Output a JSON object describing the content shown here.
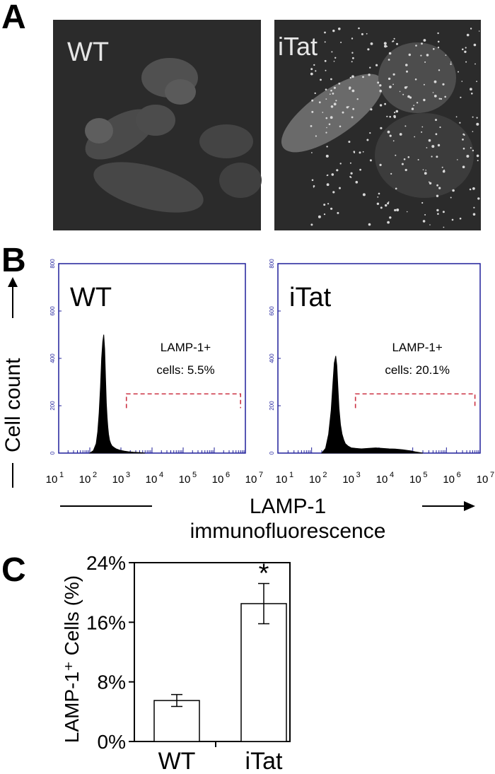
{
  "panels": {
    "a": {
      "letter": "A",
      "left_label": "WT",
      "right_label": "iTat"
    },
    "b": {
      "letter": "B",
      "y_axis_title": "Cell count",
      "x_axis_title_line1": "LAMP-1",
      "x_axis_title_line2": "immunofluorescence"
    },
    "c": {
      "letter": "C"
    }
  },
  "colors": {
    "frame": "#1f1f9a",
    "gate": "#cc3344",
    "histogram": "#000000",
    "micrograph_bg": "#2b2b2b"
  },
  "chart_data": [
    {
      "type": "area",
      "title": "WT",
      "xlabel": "LAMP-1 immunofluorescence",
      "ylabel": "Cell count",
      "x_scale": "log",
      "xlim": [
        10,
        10000000
      ],
      "ylim": [
        0,
        800
      ],
      "x_ticks": [
        "10",
        "10",
        "10",
        "10",
        "10",
        "10",
        "10"
      ],
      "x_tick_exponents": [
        "1",
        "2",
        "3",
        "4",
        "5",
        "6",
        "7"
      ],
      "y_ticks": [
        "0",
        "200",
        "400",
        "600",
        "800"
      ],
      "x": [
        100,
        130,
        160,
        180,
        200,
        220,
        240,
        260,
        280,
        300,
        320,
        340,
        360,
        380,
        400,
        430,
        470,
        520,
        600,
        700,
        850,
        1000,
        1300,
        1700,
        2500,
        4000,
        6000
      ],
      "y": [
        0,
        10,
        40,
        90,
        170,
        280,
        400,
        470,
        500,
        440,
        320,
        210,
        150,
        110,
        80,
        55,
        40,
        30,
        24,
        18,
        14,
        11,
        8,
        6,
        4,
        2,
        0
      ],
      "gate_range": [
        1500,
        7000000
      ],
      "annotation_line1": "LAMP-1+",
      "annotation_line2": "cells: 5.5%"
    },
    {
      "type": "area",
      "title": "iTat",
      "xlabel": "LAMP-1 immunofluorescence",
      "ylabel": "Cell count",
      "x_scale": "log",
      "xlim": [
        10,
        10000000
      ],
      "ylim": [
        0,
        800
      ],
      "x_ticks": [
        "10",
        "10",
        "10",
        "10",
        "10",
        "10",
        "10"
      ],
      "x_tick_exponents": [
        "1",
        "2",
        "3",
        "4",
        "5",
        "6",
        "7"
      ],
      "y_ticks": [
        "0",
        "200",
        "400",
        "600",
        "800"
      ],
      "x": [
        200,
        260,
        320,
        380,
        430,
        470,
        520,
        560,
        600,
        650,
        720,
        800,
        900,
        1000,
        1200,
        1500,
        2000,
        3000,
        5000,
        8000,
        12000,
        20000,
        30000,
        50000,
        80000,
        120000,
        200000
      ],
      "y": [
        0,
        20,
        80,
        180,
        300,
        380,
        410,
        370,
        280,
        190,
        120,
        80,
        55,
        40,
        30,
        22,
        20,
        18,
        20,
        22,
        20,
        18,
        17,
        14,
        10,
        5,
        0
      ],
      "gate_range": [
        2000,
        7000000
      ],
      "annotation_line1": "LAMP-1+",
      "annotation_line2": "cells: 20.1%"
    },
    {
      "type": "bar",
      "categories": [
        "WT",
        "iTat"
      ],
      "values": [
        5.5,
        18.5
      ],
      "errors": [
        0.8,
        2.7
      ],
      "ylabel": "LAMP-1⁺ Cells (%)",
      "ylim": [
        0,
        24
      ],
      "y_ticks": [
        "0%",
        "8%",
        "16%",
        "24%"
      ],
      "significance": [
        "",
        "*"
      ]
    }
  ]
}
